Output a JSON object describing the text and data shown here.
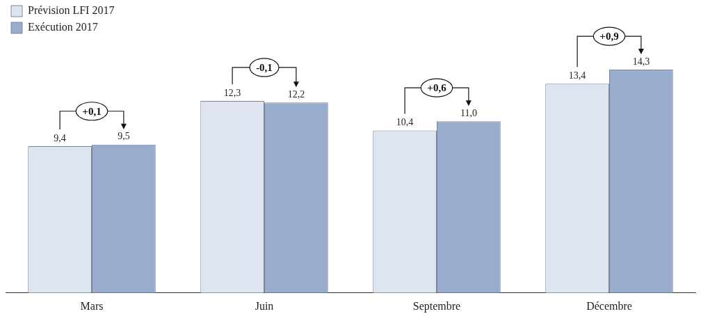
{
  "chart_data": {
    "type": "bar",
    "categories": [
      "Mars",
      "Juin",
      "Septembre",
      "Décembre"
    ],
    "series": [
      {
        "name": "Prévision LFI 2017",
        "color": "#dfe5f0",
        "values": [
          9.4,
          12.3,
          10.4,
          13.4
        ],
        "value_labels": [
          "9,4",
          "12,3",
          "10,4",
          "13,4"
        ]
      },
      {
        "name": "Exécution 2017",
        "color": "#9aacce",
        "values": [
          9.5,
          12.2,
          11.0,
          14.3
        ],
        "value_labels": [
          "9,5",
          "12,2",
          "11,0",
          "14,3"
        ]
      }
    ],
    "tick_labels": "x",
    "legend": "top left",
    "grid": false,
    "annotations": [
      "+0,1",
      "-0,1",
      "+0,6",
      "+0,9"
    ]
  }
}
